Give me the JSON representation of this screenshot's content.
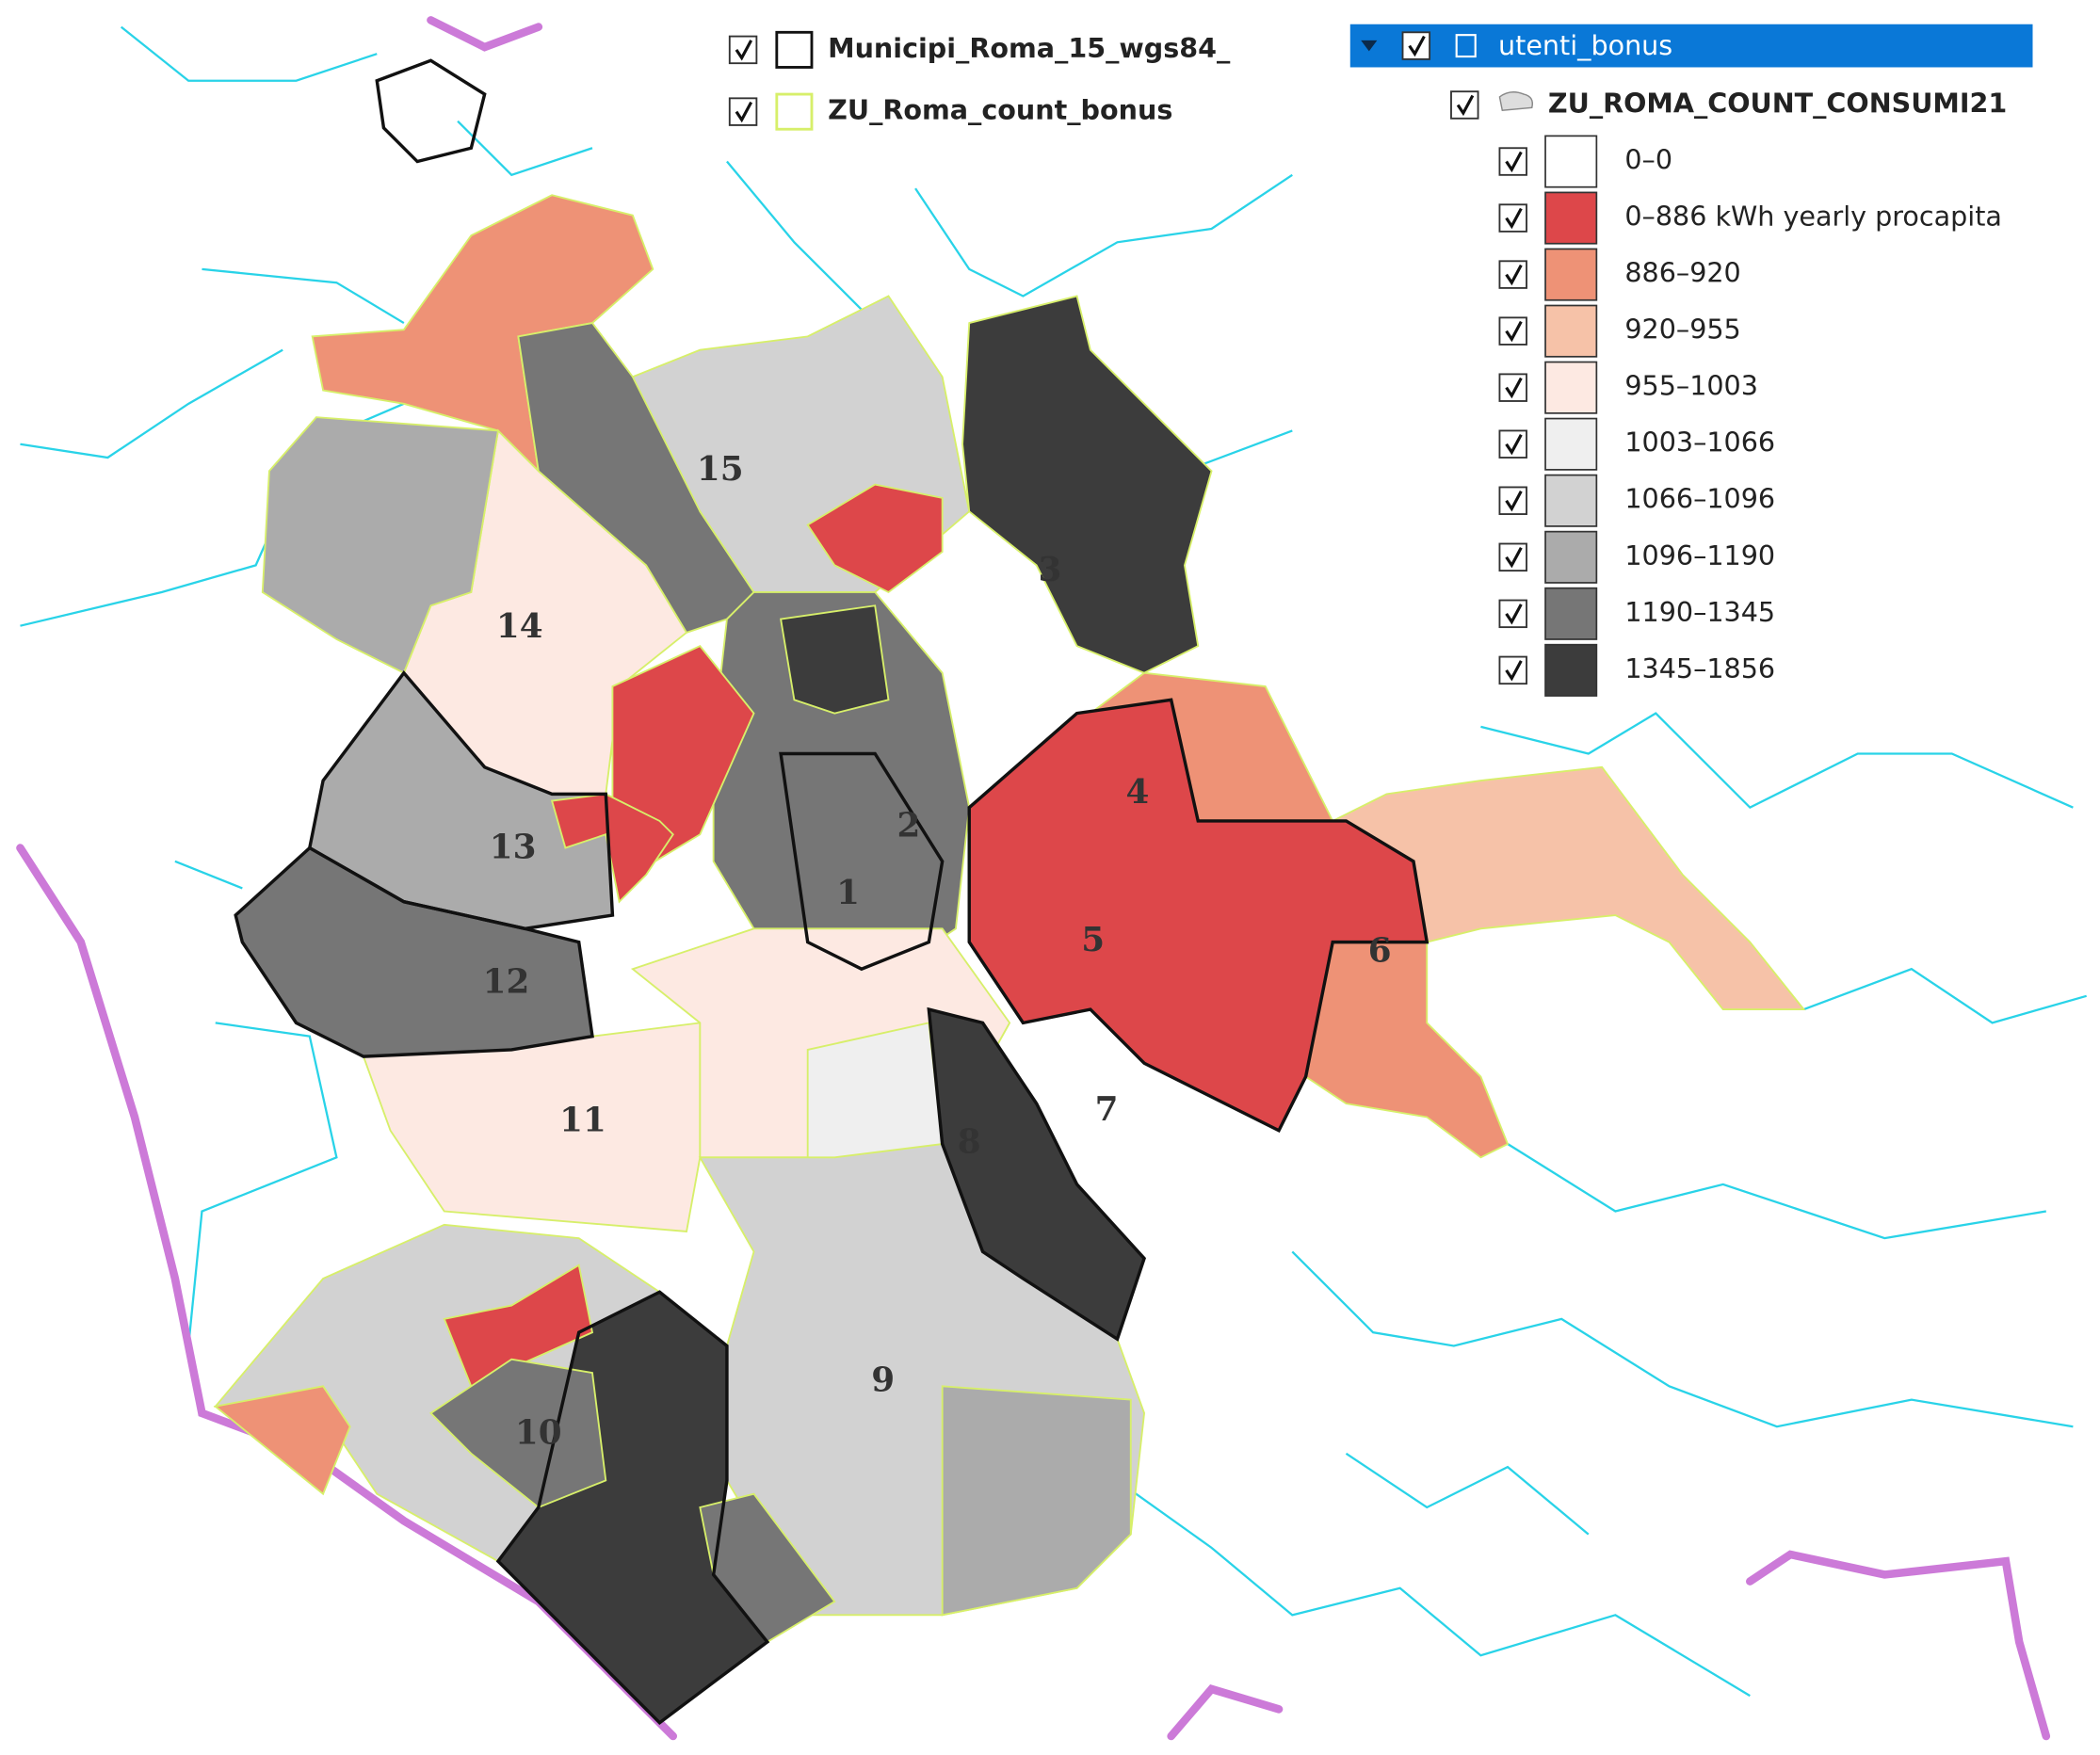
{
  "layers": [
    {
      "name": "Municipi_Roma_15_wgs84_",
      "outline": "#111111"
    },
    {
      "name": "ZU_Roma_count_bonus",
      "outline": "#d7ef6a"
    }
  ],
  "group": {
    "name": "utenti_bonus",
    "layer": "ZU_ROMA_COUNT_CONSUMI21",
    "classes": [
      {
        "label": "0–0",
        "color": "#ffffff"
      },
      {
        "label": "0–886 kWh yearly procapita",
        "color": "#dd474a"
      },
      {
        "label": "886–920",
        "color": "#ee9276"
      },
      {
        "label": "920–955",
        "color": "#f6c2a8"
      },
      {
        "label": "955–1003",
        "color": "#fde9e2"
      },
      {
        "label": "1003–1066",
        "color": "#efefef"
      },
      {
        "label": "1066–1096",
        "color": "#d2d2d2"
      },
      {
        "label": "1096–1190",
        "color": "#ababab"
      },
      {
        "label": "1190–1345",
        "color": "#767676"
      },
      {
        "label": "1345–1856",
        "color": "#3c3c3c"
      }
    ]
  },
  "municipi": [
    "1",
    "2",
    "3",
    "4",
    "5",
    "6",
    "7",
    "8",
    "9",
    "10",
    "11",
    "12",
    "13",
    "14",
    "15"
  ]
}
